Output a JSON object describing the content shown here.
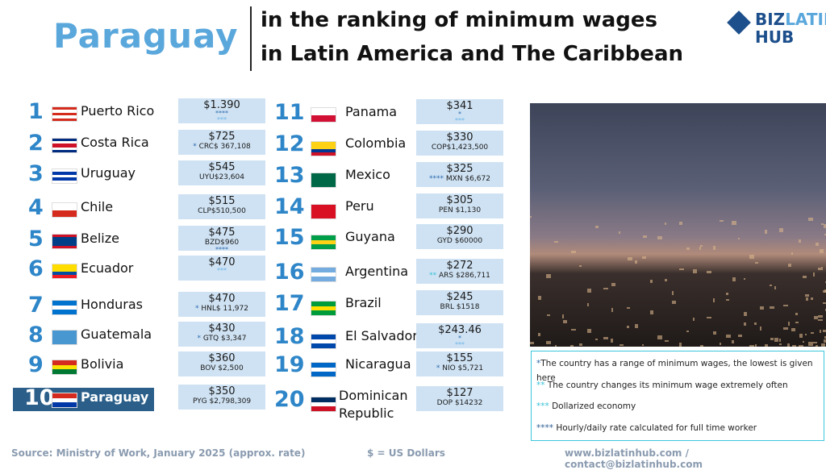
{
  "header": {
    "country": "Paraguay",
    "title_line1": "in the ranking of minimum wages",
    "title_line2": "in Latin America and The Caribbean"
  },
  "logo": {
    "line1a": "BIZ",
    "line1b": "LATIN",
    "line2": "HUB"
  },
  "colors": {
    "accent": "#5aa7dc",
    "rank": "#2e86c8",
    "box": "#cfe2f3",
    "highlight": "#2b5f8a",
    "legend_border": "#3cc7dc"
  },
  "rankings": [
    {
      "rank": "1",
      "country": "Puerto Rico",
      "usd": "$1.390",
      "local": "",
      "stars": [
        "****",
        "***"
      ],
      "flag": [
        "#d52b1e",
        "#fff",
        "#d52b1e",
        "#fff",
        "#d52b1e"
      ]
    },
    {
      "rank": "2",
      "country": "Costa Rica",
      "usd": "$725",
      "local": "CRC$ 367,108",
      "pre": "*",
      "flag": [
        "#002b7f",
        "#fff",
        "#ce1126",
        "#ce1126",
        "#fff",
        "#002b7f"
      ]
    },
    {
      "rank": "3",
      "country": "Uruguay",
      "usd": "$545",
      "local": "UYU$23,604",
      "flag": [
        "#fff",
        "#0038a8",
        "#fff",
        "#0038a8",
        "#fff"
      ]
    },
    {
      "rank": "4",
      "country": "Chile",
      "usd": "$515",
      "local": "CLP$510,500",
      "flag": [
        "#fff",
        "#d52b1e"
      ]
    },
    {
      "rank": "5",
      "country": "Belize",
      "usd": "$475",
      "local": "BZD$960",
      "stars": [
        "****"
      ],
      "flag": [
        "#ce1126",
        "#003f87",
        "#003f87",
        "#003f87",
        "#ce1126"
      ]
    },
    {
      "rank": "6",
      "country": "Ecuador",
      "usd": "$470",
      "local": "",
      "stars": [
        "***"
      ],
      "flag": [
        "#ffdd00",
        "#ffdd00",
        "#034ea2",
        "#ed1c24"
      ]
    },
    {
      "rank": "7",
      "country": "Honduras",
      "usd": "$470",
      "local": "HNL$ 11,972",
      "pre": "*",
      "flag": [
        "#0073cf",
        "#fff",
        "#0073cf"
      ]
    },
    {
      "rank": "8",
      "country": "Guatemala",
      "usd": "$430",
      "local": "GTQ $3,347",
      "pre": "*",
      "flag": [
        "#4997d0"
      ]
    },
    {
      "rank": "9",
      "country": "Bolivia",
      "usd": "$360",
      "local": "BOV $2,500",
      "flag": [
        "#d52b1e",
        "#f9e300",
        "#007934"
      ]
    },
    {
      "rank": "10",
      "country": "Paraguay",
      "usd": "$350",
      "local": "PYG $2,798,309",
      "flag": [
        "#d52b1e",
        "#fff",
        "#0038a8"
      ]
    },
    {
      "rank": "11",
      "country": "Panama",
      "usd": "$341",
      "local": "",
      "stars": [
        "*",
        "***"
      ],
      "flag": [
        "#fff",
        "#d21034"
      ]
    },
    {
      "rank": "12",
      "country": "Colombia",
      "usd": "$330",
      "local": "COP$1,423,500",
      "flag": [
        "#fcd116",
        "#fcd116",
        "#003893",
        "#ce1126"
      ]
    },
    {
      "rank": "13",
      "country": "Mexico",
      "usd": "$325",
      "local": "MXN $6,672",
      "pre": "****",
      "flag": [
        "#006847"
      ]
    },
    {
      "rank": "14",
      "country": "Peru",
      "usd": "$305",
      "local": "PEN $1,130",
      "flag": [
        "#d91023"
      ]
    },
    {
      "rank": "15",
      "country": "Guyana",
      "usd": "$290",
      "local": "GYD $60000",
      "flag": [
        "#009e49",
        "#fcd116",
        "#009e49"
      ]
    },
    {
      "rank": "16",
      "country": "Argentina",
      "usd": "$272",
      "local": "ARS $286,711",
      "pre": "**",
      "flag": [
        "#74acdf",
        "#fff",
        "#74acdf"
      ]
    },
    {
      "rank": "17",
      "country": "Brazil",
      "usd": "$245",
      "local": "BRL $1518",
      "flag": [
        "#009c3b",
        "#ffdf00",
        "#009c3b"
      ]
    },
    {
      "rank": "18",
      "country": "El Salvador",
      "usd": "$243.46",
      "local": "",
      "stars": [
        "*",
        "***"
      ],
      "flag": [
        "#0047ab",
        "#fff",
        "#0047ab"
      ]
    },
    {
      "rank": "19",
      "country": "Nicaragua",
      "usd": "$155",
      "local": "NIO  $5,721",
      "pre": "*",
      "flag": [
        "#0067c6",
        "#fff",
        "#0067c6"
      ]
    },
    {
      "rank": "20",
      "country": "Dominican Republic",
      "usd": "$127",
      "local": "DOP $14232",
      "flag": [
        "#002d62",
        "#fff",
        "#ce1126"
      ]
    }
  ],
  "legend": [
    {
      "mark": "*",
      "text": "The country has a range of minimum wages, the lowest is given here"
    },
    {
      "mark": "**",
      "text": " The country changes its minimum wage extremely often"
    },
    {
      "mark": "***",
      "text": " Dollarized economy"
    },
    {
      "mark": "****",
      "text": " Hourly/daily rate calculated for full time worker"
    }
  ],
  "footer": {
    "source": "Source: Ministry of Work, January 2025 (approx. rate)",
    "currency": "$ = US Dollars",
    "contact": "www.bizlatinhub.com / contact@bizlatinhub.com"
  }
}
